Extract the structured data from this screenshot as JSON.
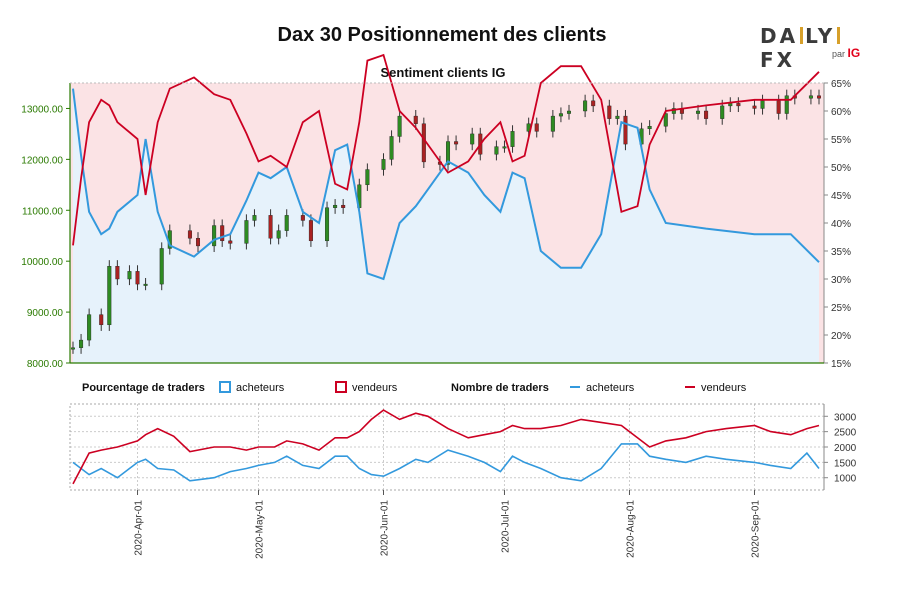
{
  "header": {
    "title": "Dax 30 Positionnement des clients",
    "subtitle": "Sentiment clients IG",
    "logo_main_left": "DA",
    "logo_main_mid": "LY",
    "logo_main_right": "FX",
    "logo_sub": "par",
    "logo_brand": "IG"
  },
  "legend": {
    "pct_title": "Pourcentage de traders",
    "pct_buyers": "acheteurs",
    "pct_sellers": "vendeurs",
    "count_title": "Nombre de traders",
    "count_buyers": "acheteurs",
    "count_sellers": "vendeurs"
  },
  "colors": {
    "buyers": "#3399dd",
    "sellers": "#cc0022",
    "candle_up": "#2e8b22",
    "candle_down": "#aa2222",
    "price_axis": "#2a7a00",
    "sellers_fill": "#fbe3e5",
    "buyers_fill": "#e6f2fb"
  },
  "chart_data": [
    {
      "type": "candlestick+area",
      "title": "Sentiment clients IG",
      "left_axis": {
        "ylim": [
          8000,
          13500
        ],
        "ticks": [
          "8000.00",
          "9000.00",
          "10000.00",
          "11000.00",
          "12000.00",
          "13000.00"
        ]
      },
      "right_axis": {
        "ylim": [
          15,
          65
        ],
        "ticks": [
          "15%",
          "20%",
          "25%",
          "30%",
          "35%",
          "40%",
          "45%",
          "50%",
          "55%",
          "60%",
          "65%"
        ]
      },
      "x_ticks": [
        "2020-Apr-01",
        "2020-May-01",
        "2020-Jun-01",
        "2020-Jul-01",
        "2020-Aug-01",
        "2020-Sep-01"
      ],
      "x_range": [
        "2020-03-16",
        "2020-09-17"
      ],
      "reference_lines_pct": [
        50,
        32
      ],
      "price_close": [
        [
          "2020-03-16",
          8300
        ],
        [
          "2020-03-18",
          8450
        ],
        [
          "2020-03-20",
          8950
        ],
        [
          "2020-03-23",
          8750
        ],
        [
          "2020-03-25",
          9900
        ],
        [
          "2020-03-27",
          9650
        ],
        [
          "2020-03-30",
          9800
        ],
        [
          "2020-04-01",
          9550
        ],
        [
          "2020-04-03",
          9550
        ],
        [
          "2020-04-07",
          10250
        ],
        [
          "2020-04-09",
          10600
        ],
        [
          "2020-04-14",
          10450
        ],
        [
          "2020-04-16",
          10300
        ],
        [
          "2020-04-20",
          10700
        ],
        [
          "2020-04-22",
          10400
        ],
        [
          "2020-04-24",
          10350
        ],
        [
          "2020-04-28",
          10800
        ],
        [
          "2020-04-30",
          10900
        ],
        [
          "2020-05-04",
          10450
        ],
        [
          "2020-05-06",
          10600
        ],
        [
          "2020-05-08",
          10900
        ],
        [
          "2020-05-12",
          10800
        ],
        [
          "2020-05-14",
          10400
        ],
        [
          "2020-05-18",
          11050
        ],
        [
          "2020-05-20",
          11100
        ],
        [
          "2020-05-22",
          11050
        ],
        [
          "2020-05-26",
          11500
        ],
        [
          "2020-05-28",
          11800
        ],
        [
          "2020-06-01",
          12000
        ],
        [
          "2020-06-03",
          12450
        ],
        [
          "2020-06-05",
          12850
        ],
        [
          "2020-06-09",
          12700
        ],
        [
          "2020-06-11",
          11950
        ],
        [
          "2020-06-15",
          11900
        ],
        [
          "2020-06-17",
          12350
        ],
        [
          "2020-06-19",
          12300
        ],
        [
          "2020-06-23",
          12500
        ],
        [
          "2020-06-25",
          12100
        ],
        [
          "2020-06-29",
          12250
        ],
        [
          "2020-07-01",
          12250
        ],
        [
          "2020-07-03",
          12550
        ],
        [
          "2020-07-07",
          12700
        ],
        [
          "2020-07-09",
          12550
        ],
        [
          "2020-07-13",
          12850
        ],
        [
          "2020-07-15",
          12900
        ],
        [
          "2020-07-17",
          12950
        ],
        [
          "2020-07-21",
          13150
        ],
        [
          "2020-07-23",
          13050
        ],
        [
          "2020-07-27",
          12800
        ],
        [
          "2020-07-29",
          12850
        ],
        [
          "2020-07-31",
          12300
        ],
        [
          "2020-08-04",
          12600
        ],
        [
          "2020-08-06",
          12650
        ],
        [
          "2020-08-10",
          12900
        ],
        [
          "2020-08-12",
          13000
        ],
        [
          "2020-08-14",
          12900
        ],
        [
          "2020-08-18",
          12950
        ],
        [
          "2020-08-20",
          12800
        ],
        [
          "2020-08-24",
          13050
        ],
        [
          "2020-08-26",
          13100
        ],
        [
          "2020-08-28",
          13050
        ],
        [
          "2020-09-01",
          13000
        ],
        [
          "2020-09-03",
          13150
        ],
        [
          "2020-09-07",
          12900
        ],
        [
          "2020-09-09",
          13250
        ],
        [
          "2020-09-11",
          13200
        ],
        [
          "2020-09-15",
          13250
        ],
        [
          "2020-09-17",
          13200
        ]
      ],
      "buyers_pct": [
        [
          "2020-03-16",
          64
        ],
        [
          "2020-03-18",
          52
        ],
        [
          "2020-03-20",
          42
        ],
        [
          "2020-03-23",
          38
        ],
        [
          "2020-03-25",
          39
        ],
        [
          "2020-03-27",
          42
        ],
        [
          "2020-04-01",
          45
        ],
        [
          "2020-04-03",
          55
        ],
        [
          "2020-04-06",
          42
        ],
        [
          "2020-04-09",
          36
        ],
        [
          "2020-04-15",
          34
        ],
        [
          "2020-04-20",
          37
        ],
        [
          "2020-04-24",
          38
        ],
        [
          "2020-04-28",
          44
        ],
        [
          "2020-05-01",
          49
        ],
        [
          "2020-05-04",
          48
        ],
        [
          "2020-05-08",
          50
        ],
        [
          "2020-05-12",
          42
        ],
        [
          "2020-05-16",
          40
        ],
        [
          "2020-05-20",
          53
        ],
        [
          "2020-05-23",
          54
        ],
        [
          "2020-05-26",
          42
        ],
        [
          "2020-05-28",
          31
        ],
        [
          "2020-06-01",
          30
        ],
        [
          "2020-06-05",
          40
        ],
        [
          "2020-06-09",
          43
        ],
        [
          "2020-06-12",
          46
        ],
        [
          "2020-06-17",
          51
        ],
        [
          "2020-06-22",
          49
        ],
        [
          "2020-06-26",
          45
        ],
        [
          "2020-06-30",
          42
        ],
        [
          "2020-07-03",
          49
        ],
        [
          "2020-07-06",
          48
        ],
        [
          "2020-07-10",
          35
        ],
        [
          "2020-07-15",
          32
        ],
        [
          "2020-07-20",
          32
        ],
        [
          "2020-07-25",
          38
        ],
        [
          "2020-07-30",
          58
        ],
        [
          "2020-08-03",
          57
        ],
        [
          "2020-08-06",
          46
        ],
        [
          "2020-08-10",
          40
        ],
        [
          "2020-08-20",
          39
        ],
        [
          "2020-09-01",
          38
        ],
        [
          "2020-09-10",
          38
        ],
        [
          "2020-09-17",
          33
        ]
      ],
      "sellers_pct": [
        [
          "2020-03-16",
          36
        ],
        [
          "2020-03-18",
          48
        ],
        [
          "2020-03-20",
          58
        ],
        [
          "2020-03-23",
          62
        ],
        [
          "2020-03-25",
          61
        ],
        [
          "2020-03-27",
          58
        ],
        [
          "2020-04-01",
          55
        ],
        [
          "2020-04-03",
          45
        ],
        [
          "2020-04-06",
          58
        ],
        [
          "2020-04-09",
          64
        ],
        [
          "2020-04-15",
          66
        ],
        [
          "2020-04-20",
          63
        ],
        [
          "2020-04-24",
          62
        ],
        [
          "2020-04-28",
          56
        ],
        [
          "2020-05-01",
          51
        ],
        [
          "2020-05-04",
          52
        ],
        [
          "2020-05-08",
          50
        ],
        [
          "2020-05-12",
          58
        ],
        [
          "2020-05-16",
          60
        ],
        [
          "2020-05-20",
          47
        ],
        [
          "2020-05-23",
          46
        ],
        [
          "2020-05-26",
          58
        ],
        [
          "2020-05-28",
          69
        ],
        [
          "2020-06-01",
          70
        ],
        [
          "2020-06-05",
          60
        ],
        [
          "2020-06-09",
          57
        ],
        [
          "2020-06-12",
          54
        ],
        [
          "2020-06-17",
          49
        ],
        [
          "2020-06-22",
          51
        ],
        [
          "2020-06-26",
          55
        ],
        [
          "2020-06-30",
          58
        ],
        [
          "2020-07-03",
          51
        ],
        [
          "2020-07-06",
          52
        ],
        [
          "2020-07-10",
          65
        ],
        [
          "2020-07-15",
          68
        ],
        [
          "2020-07-20",
          68
        ],
        [
          "2020-07-25",
          62
        ],
        [
          "2020-07-30",
          42
        ],
        [
          "2020-08-03",
          43
        ],
        [
          "2020-08-06",
          54
        ],
        [
          "2020-08-10",
          60
        ],
        [
          "2020-08-20",
          61
        ],
        [
          "2020-09-01",
          62
        ],
        [
          "2020-09-10",
          62
        ],
        [
          "2020-09-17",
          67
        ]
      ]
    },
    {
      "type": "line",
      "title": "Nombre de traders",
      "ylim": [
        600,
        3400
      ],
      "ticks": [
        "1000",
        "1500",
        "2000",
        "2500",
        "3000"
      ],
      "x_range": [
        "2020-03-16",
        "2020-09-17"
      ],
      "series": [
        {
          "name": "acheteurs",
          "values": [
            [
              "2020-03-16",
              1500
            ],
            [
              "2020-03-20",
              1100
            ],
            [
              "2020-03-23",
              1300
            ],
            [
              "2020-03-27",
              1000
            ],
            [
              "2020-04-01",
              1500
            ],
            [
              "2020-04-03",
              1600
            ],
            [
              "2020-04-06",
              1300
            ],
            [
              "2020-04-10",
              1250
            ],
            [
              "2020-04-14",
              900
            ],
            [
              "2020-04-20",
              1000
            ],
            [
              "2020-04-24",
              1200
            ],
            [
              "2020-04-28",
              1300
            ],
            [
              "2020-05-01",
              1400
            ],
            [
              "2020-05-05",
              1500
            ],
            [
              "2020-05-08",
              1700
            ],
            [
              "2020-05-12",
              1400
            ],
            [
              "2020-05-16",
              1300
            ],
            [
              "2020-05-20",
              1700
            ],
            [
              "2020-05-23",
              1700
            ],
            [
              "2020-05-26",
              1300
            ],
            [
              "2020-05-29",
              1100
            ],
            [
              "2020-06-01",
              1050
            ],
            [
              "2020-06-05",
              1300
            ],
            [
              "2020-06-09",
              1600
            ],
            [
              "2020-06-12",
              1500
            ],
            [
              "2020-06-17",
              1900
            ],
            [
              "2020-06-22",
              1700
            ],
            [
              "2020-06-26",
              1500
            ],
            [
              "2020-06-30",
              1200
            ],
            [
              "2020-07-03",
              1700
            ],
            [
              "2020-07-06",
              1500
            ],
            [
              "2020-07-10",
              1300
            ],
            [
              "2020-07-15",
              1000
            ],
            [
              "2020-07-20",
              900
            ],
            [
              "2020-07-25",
              1300
            ],
            [
              "2020-07-30",
              2100
            ],
            [
              "2020-08-03",
              2100
            ],
            [
              "2020-08-06",
              1700
            ],
            [
              "2020-08-10",
              1600
            ],
            [
              "2020-08-15",
              1500
            ],
            [
              "2020-08-20",
              1700
            ],
            [
              "2020-08-25",
              1600
            ],
            [
              "2020-09-01",
              1500
            ],
            [
              "2020-09-05",
              1400
            ],
            [
              "2020-09-10",
              1300
            ],
            [
              "2020-09-14",
              1800
            ],
            [
              "2020-09-17",
              1300
            ]
          ]
        },
        {
          "name": "vendeurs",
          "values": [
            [
              "2020-03-16",
              800
            ],
            [
              "2020-03-20",
              1800
            ],
            [
              "2020-03-23",
              1900
            ],
            [
              "2020-03-27",
              2000
            ],
            [
              "2020-04-01",
              2200
            ],
            [
              "2020-04-03",
              2400
            ],
            [
              "2020-04-06",
              2600
            ],
            [
              "2020-04-10",
              2350
            ],
            [
              "2020-04-14",
              1850
            ],
            [
              "2020-04-20",
              2000
            ],
            [
              "2020-04-24",
              2000
            ],
            [
              "2020-04-28",
              1900
            ],
            [
              "2020-05-01",
              2000
            ],
            [
              "2020-05-05",
              2000
            ],
            [
              "2020-05-08",
              2200
            ],
            [
              "2020-05-12",
              2100
            ],
            [
              "2020-05-16",
              1900
            ],
            [
              "2020-05-20",
              2300
            ],
            [
              "2020-05-23",
              2300
            ],
            [
              "2020-05-26",
              2500
            ],
            [
              "2020-05-29",
              2900
            ],
            [
              "2020-06-01",
              3200
            ],
            [
              "2020-06-05",
              2900
            ],
            [
              "2020-06-09",
              3100
            ],
            [
              "2020-06-12",
              3000
            ],
            [
              "2020-06-17",
              2600
            ],
            [
              "2020-06-22",
              2300
            ],
            [
              "2020-06-26",
              2400
            ],
            [
              "2020-06-30",
              2500
            ],
            [
              "2020-07-03",
              2700
            ],
            [
              "2020-07-06",
              2600
            ],
            [
              "2020-07-10",
              2600
            ],
            [
              "2020-07-15",
              2700
            ],
            [
              "2020-07-20",
              2900
            ],
            [
              "2020-07-25",
              2800
            ],
            [
              "2020-07-30",
              2700
            ],
            [
              "2020-08-03",
              2300
            ],
            [
              "2020-08-06",
              2000
            ],
            [
              "2020-08-10",
              2200
            ],
            [
              "2020-08-15",
              2300
            ],
            [
              "2020-08-20",
              2500
            ],
            [
              "2020-08-25",
              2600
            ],
            [
              "2020-09-01",
              2700
            ],
            [
              "2020-09-05",
              2500
            ],
            [
              "2020-09-10",
              2400
            ],
            [
              "2020-09-14",
              2600
            ],
            [
              "2020-09-17",
              2700
            ]
          ]
        }
      ]
    }
  ]
}
